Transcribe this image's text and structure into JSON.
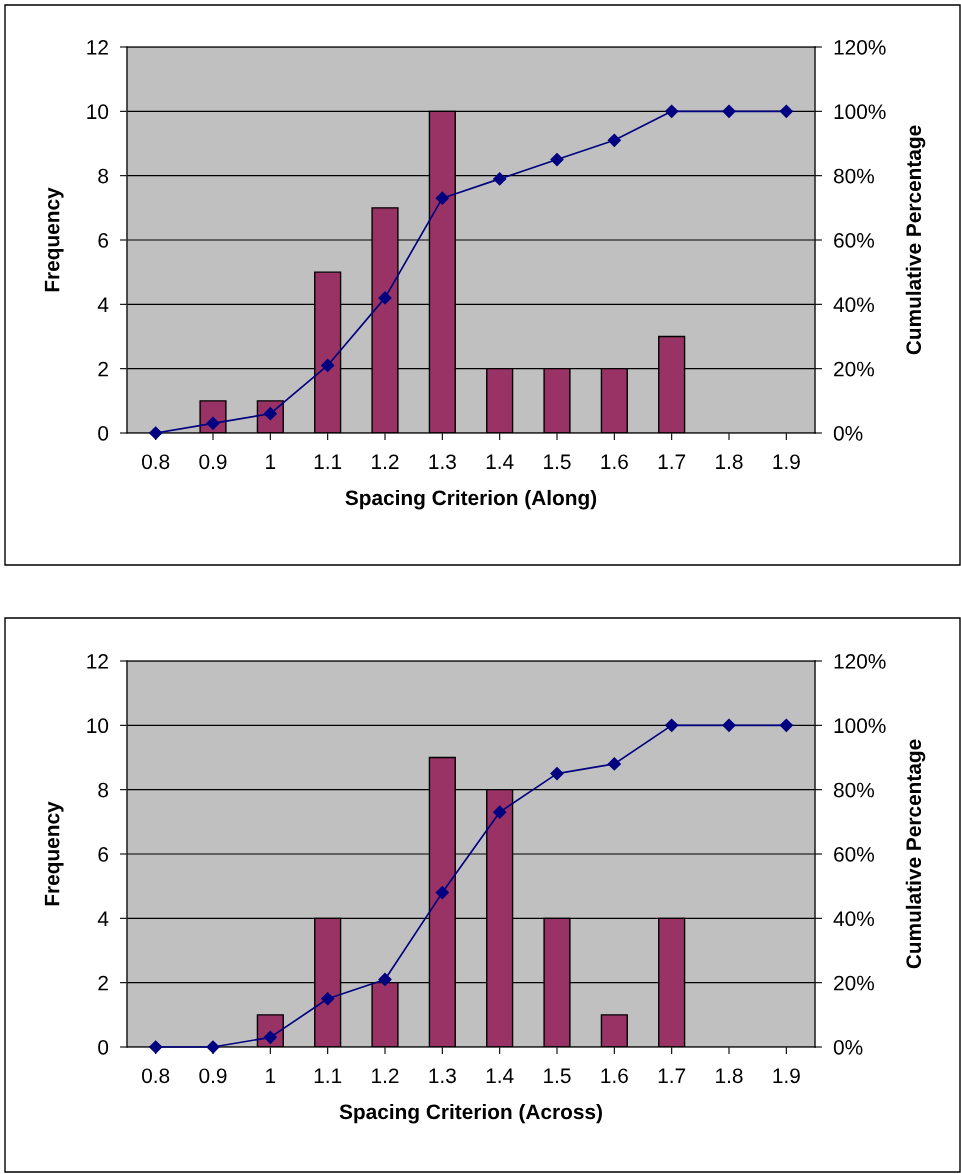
{
  "chart_data": [
    {
      "type": "bar",
      "xlabel": "Spacing Criterion (Along)",
      "ylabel": "Frequency",
      "y2label": "Cumulative Percentage",
      "categories": [
        "0.8",
        "0.9",
        "1",
        "1.1",
        "1.2",
        "1.3",
        "1.4",
        "1.5",
        "1.6",
        "1.7",
        "1.8",
        "1.9"
      ],
      "series": [
        {
          "color": "#993366",
          "values": [
            0,
            1,
            1,
            5,
            7,
            10,
            2,
            2,
            2,
            3,
            0,
            0
          ]
        },
        {
          "type": "line",
          "axis": "y2",
          "color": "#000080",
          "marker": "diamond",
          "line_style": "solid",
          "values": [
            0,
            3,
            6,
            21,
            42,
            73,
            79,
            85,
            91,
            100,
            100,
            100
          ]
        }
      ],
      "ylim": [
        0,
        12
      ],
      "yticks": [
        0,
        2,
        4,
        6,
        8,
        10,
        12
      ],
      "y2lim": [
        0,
        120
      ],
      "y2ticks": [
        {
          "value": 0,
          "label": "0%"
        },
        {
          "value": 20,
          "label": "20%"
        },
        {
          "value": 40,
          "label": "40%"
        },
        {
          "value": 60,
          "label": "60%"
        },
        {
          "value": 80,
          "label": "80%"
        },
        {
          "value": 100,
          "label": "100%"
        },
        {
          "value": 120,
          "label": "120%"
        }
      ],
      "grid": "y"
    },
    {
      "type": "bar",
      "xlabel": "Spacing Criterion (Across)",
      "ylabel": "Frequency",
      "y2label": "Cumulative Percentage",
      "categories": [
        "0.8",
        "0.9",
        "1",
        "1.1",
        "1.2",
        "1.3",
        "1.4",
        "1.5",
        "1.6",
        "1.7",
        "1.8",
        "1.9"
      ],
      "series": [
        {
          "color": "#993366",
          "values": [
            0,
            0,
            1,
            4,
            2,
            9,
            8,
            4,
            1,
            4,
            0,
            0
          ]
        },
        {
          "type": "line",
          "axis": "y2",
          "color": "#000080",
          "marker": "diamond",
          "line_style": "solid",
          "values": [
            0,
            0,
            3,
            15,
            21,
            48,
            73,
            85,
            88,
            100,
            100,
            100
          ]
        }
      ],
      "ylim": [
        0,
        12
      ],
      "yticks": [
        0,
        2,
        4,
        6,
        8,
        10,
        12
      ],
      "y2lim": [
        0,
        120
      ],
      "y2ticks": [
        {
          "value": 0,
          "label": "0%"
        },
        {
          "value": 20,
          "label": "20%"
        },
        {
          "value": 40,
          "label": "40%"
        },
        {
          "value": 60,
          "label": "60%"
        },
        {
          "value": 80,
          "label": "80%"
        },
        {
          "value": 100,
          "label": "100%"
        },
        {
          "value": 120,
          "label": "120%"
        }
      ],
      "grid": "y"
    }
  ]
}
